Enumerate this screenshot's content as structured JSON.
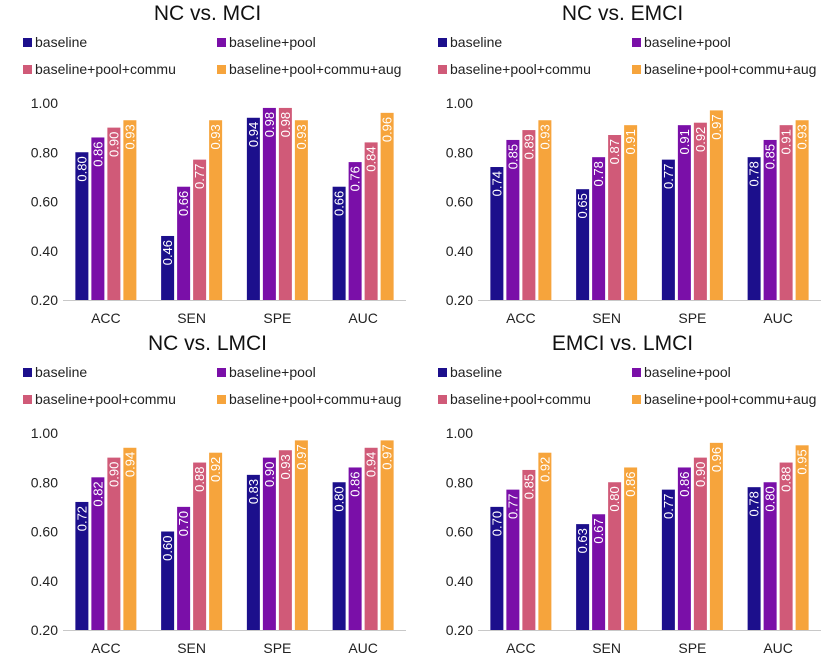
{
  "legend": [
    "baseline",
    "baseline+pool",
    "baseline+pool+commu",
    "baseline+pool+commu+aug"
  ],
  "colors": [
    "#1c0f8c",
    "#7a0fa8",
    "#d05a78",
    "#f6a43c"
  ],
  "chart_data": [
    {
      "type": "bar",
      "title": "NC vs. MCI",
      "categories": [
        "ACC",
        "SEN",
        "SPE",
        "AUC"
      ],
      "ylim": [
        0.2,
        1.0
      ],
      "yticks": [
        "0.20",
        "0.40",
        "0.60",
        "0.80",
        "1.00"
      ],
      "series": [
        {
          "name": "baseline",
          "values": [
            0.8,
            0.46,
            0.94,
            0.66
          ],
          "labels": [
            "0.80",
            "0.46",
            "0.94",
            "0.66"
          ]
        },
        {
          "name": "baseline+pool",
          "values": [
            0.86,
            0.66,
            0.98,
            0.76
          ],
          "labels": [
            "0.86",
            "0.66",
            "0.98",
            "0.76"
          ]
        },
        {
          "name": "baseline+pool+commu",
          "values": [
            0.9,
            0.77,
            0.98,
            0.84
          ],
          "labels": [
            "0.90",
            "0.77",
            "0.98",
            "0.84"
          ]
        },
        {
          "name": "baseline+pool+commu+aug",
          "values": [
            0.93,
            0.93,
            0.93,
            0.96
          ],
          "labels": [
            "0.93",
            "0.93",
            "0.93",
            "0.96"
          ]
        }
      ]
    },
    {
      "type": "bar",
      "title": "NC vs. EMCI",
      "categories": [
        "ACC",
        "SEN",
        "SPE",
        "AUC"
      ],
      "ylim": [
        0.2,
        1.0
      ],
      "yticks": [
        "0.20",
        "0.40",
        "0.60",
        "0.80",
        "1.00"
      ],
      "series": [
        {
          "name": "baseline",
          "values": [
            0.74,
            0.65,
            0.77,
            0.78
          ],
          "labels": [
            "0.74",
            "0.65",
            "0.77",
            "0.78"
          ]
        },
        {
          "name": "baseline+pool",
          "values": [
            0.85,
            0.78,
            0.91,
            0.85
          ],
          "labels": [
            "0.85",
            "0.78",
            "0.91",
            "0.85"
          ]
        },
        {
          "name": "baseline+pool+commu",
          "values": [
            0.89,
            0.87,
            0.92,
            0.91
          ],
          "labels": [
            "0.89",
            "0.87",
            "0.92",
            "0.91"
          ]
        },
        {
          "name": "baseline+pool+commu+aug",
          "values": [
            0.93,
            0.91,
            0.97,
            0.93
          ],
          "labels": [
            "0.93",
            "0.91",
            "0.97",
            "0.93"
          ]
        }
      ]
    },
    {
      "type": "bar",
      "title": "NC vs. LMCI",
      "categories": [
        "ACC",
        "SEN",
        "SPE",
        "AUC"
      ],
      "ylim": [
        0.2,
        1.0
      ],
      "yticks": [
        "0.20",
        "0.40",
        "0.60",
        "0.80",
        "1.00"
      ],
      "series": [
        {
          "name": "baseline",
          "values": [
            0.72,
            0.6,
            0.83,
            0.8
          ],
          "labels": [
            "0.72",
            "0.60",
            "0.83",
            "0.80"
          ]
        },
        {
          "name": "baseline+pool",
          "values": [
            0.82,
            0.7,
            0.9,
            0.86
          ],
          "labels": [
            "0.82",
            "0.70",
            "0.90",
            "0.86"
          ]
        },
        {
          "name": "baseline+pool+commu",
          "values": [
            0.9,
            0.88,
            0.93,
            0.94
          ],
          "labels": [
            "0.90",
            "0.88",
            "0.93",
            "0.94"
          ]
        },
        {
          "name": "baseline+pool+commu+aug",
          "values": [
            0.94,
            0.92,
            0.97,
            0.97
          ],
          "labels": [
            "0.94",
            "0.92",
            "0.97",
            "0.97"
          ]
        }
      ]
    },
    {
      "type": "bar",
      "title": "EMCI vs. LMCI",
      "categories": [
        "ACC",
        "SEN",
        "SPE",
        "AUC"
      ],
      "ylim": [
        0.2,
        1.0
      ],
      "yticks": [
        "0.20",
        "0.40",
        "0.60",
        "0.80",
        "1.00"
      ],
      "series": [
        {
          "name": "baseline",
          "values": [
            0.7,
            0.63,
            0.77,
            0.78
          ],
          "labels": [
            "0.70",
            "0.63",
            "0.77",
            "0.78"
          ]
        },
        {
          "name": "baseline+pool",
          "values": [
            0.77,
            0.67,
            0.86,
            0.8
          ],
          "labels": [
            "0.77",
            "0.67",
            "0.86",
            "0.80"
          ]
        },
        {
          "name": "baseline+pool+commu",
          "values": [
            0.85,
            0.8,
            0.9,
            0.88
          ],
          "labels": [
            "0.85",
            "0.80",
            "0.90",
            "0.88"
          ]
        },
        {
          "name": "baseline+pool+commu+aug",
          "values": [
            0.92,
            0.86,
            0.96,
            0.95
          ],
          "labels": [
            "0.92",
            "0.86",
            "0.96",
            "0.95"
          ]
        }
      ]
    }
  ]
}
